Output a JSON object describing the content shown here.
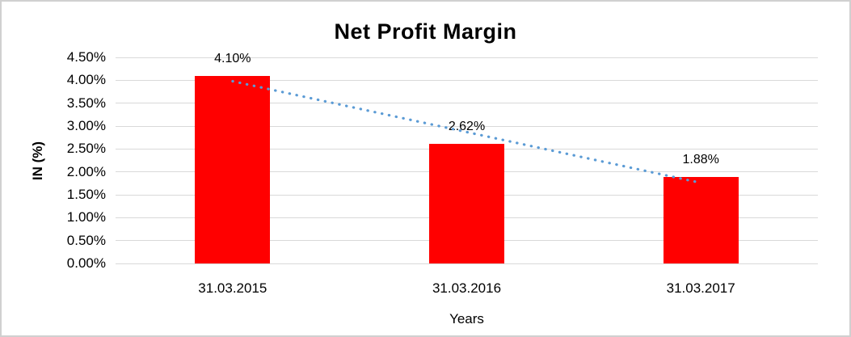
{
  "chart_data": {
    "type": "bar",
    "title": "Net Profit Margin",
    "xlabel": "Years",
    "ylabel": "IN (%)",
    "categories": [
      "31.03.2015",
      "31.03.2016",
      "31.03.2017"
    ],
    "values": [
      4.1,
      2.62,
      1.88
    ],
    "data_labels": [
      "4.10%",
      "2.62%",
      "1.88%"
    ],
    "ylim": [
      0,
      4.5
    ],
    "ytick_step": 0.5,
    "ytick_labels": [
      "0.00%",
      "0.50%",
      "1.00%",
      "1.50%",
      "2.00%",
      "2.50%",
      "3.00%",
      "3.50%",
      "4.00%",
      "4.50%"
    ],
    "grid": true,
    "legend": false,
    "bar_color": "#ff0000",
    "gridline_color": "#d9d9d9",
    "text_color": "#000000",
    "trendline": {
      "type": "linear",
      "style": "dotted",
      "color": "#5b9bd5",
      "values": [
        3.98,
        2.87,
        1.76
      ]
    }
  }
}
